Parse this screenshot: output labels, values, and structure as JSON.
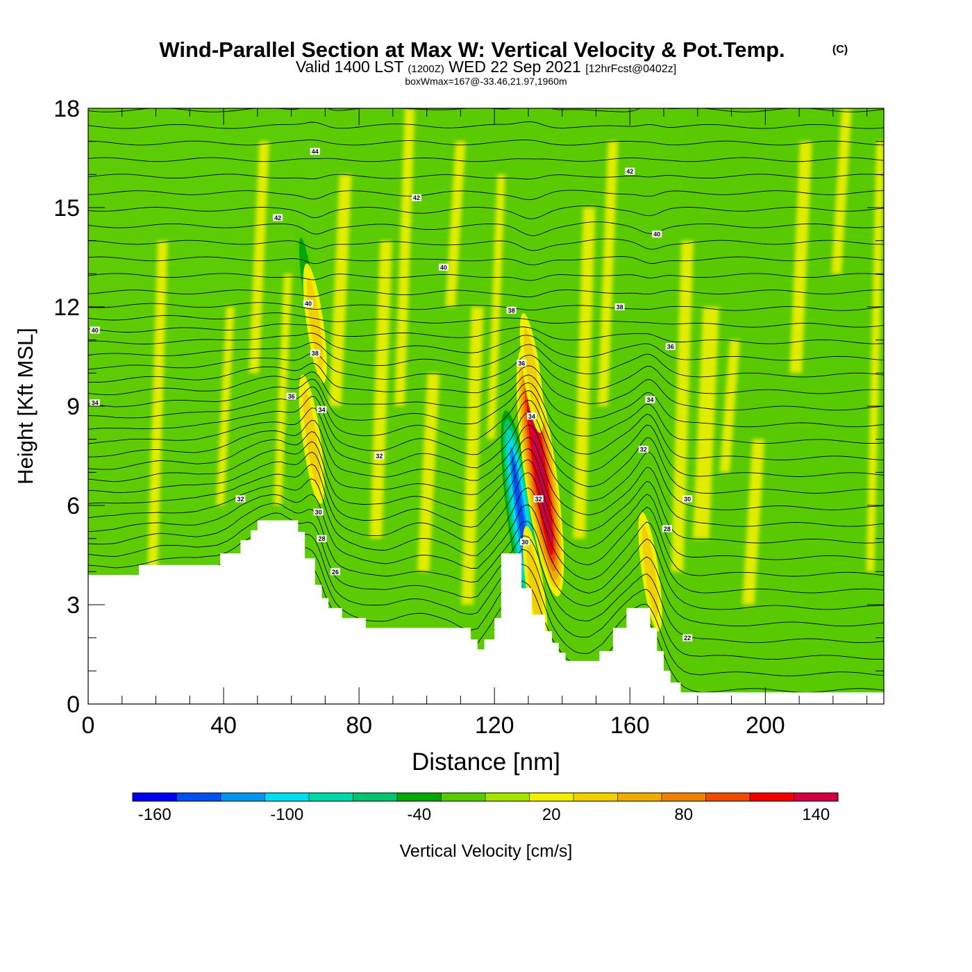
{
  "titles": {
    "main": "Wind-Parallel Section at Max W: Vertical Velocity & Pot.Temp.",
    "copyright": "(C)",
    "valid_prefix": "Valid 1400 LST",
    "valid_utc": "(1200Z)",
    "valid_date": "WED 22 Sep 2021",
    "forecast": "[12hrFcst@0402z]",
    "box_max": "boxWmax=167@-33.46,21.97,1960m"
  },
  "chart_data": {
    "type": "heatmap",
    "xlabel": "Distance [nm]",
    "ylabel": "Height [Kft MSL]",
    "xlim": [
      0,
      235
    ],
    "ylim": [
      0,
      18
    ],
    "x_ticks": [
      0,
      40,
      80,
      120,
      160,
      200
    ],
    "x_minor_step": 10,
    "y_ticks": [
      0,
      3,
      6,
      9,
      12,
      15,
      18
    ],
    "y_minor_step": 1,
    "colorbar": {
      "label": "Vertical Velocity [cm/s]",
      "min": -170,
      "step": 20,
      "tick_values": [
        -160,
        -100,
        -40,
        20,
        80,
        140
      ],
      "colors": [
        "#0000f0",
        "#0050f0",
        "#0096f0",
        "#00dcf0",
        "#00d8a8",
        "#00c46c",
        "#00a800",
        "#56cc00",
        "#a6e400",
        "#f0f000",
        "#f0d000",
        "#f0aa00",
        "#f08000",
        "#f04800",
        "#f00000",
        "#d0003c"
      ]
    },
    "terrain_kft": [
      [
        0,
        3.9
      ],
      [
        15,
        3.9
      ],
      [
        15,
        4.2
      ],
      [
        39,
        4.2
      ],
      [
        39,
        4.55
      ],
      [
        45,
        4.55
      ],
      [
        45,
        4.95
      ],
      [
        48,
        4.95
      ],
      [
        48,
        5.25
      ],
      [
        50,
        5.25
      ],
      [
        50,
        5.55
      ],
      [
        62,
        5.55
      ],
      [
        62,
        5.2
      ],
      [
        64,
        5.2
      ],
      [
        64,
        4.4
      ],
      [
        67,
        4.4
      ],
      [
        67,
        3.6
      ],
      [
        69,
        3.6
      ],
      [
        69,
        3.2
      ],
      [
        71,
        3.2
      ],
      [
        71,
        2.9
      ],
      [
        75,
        2.9
      ],
      [
        75,
        2.6
      ],
      [
        82,
        2.6
      ],
      [
        82,
        2.3
      ],
      [
        113,
        2.3
      ],
      [
        113,
        1.95
      ],
      [
        115,
        1.95
      ],
      [
        115,
        1.65
      ],
      [
        117,
        1.65
      ],
      [
        117,
        1.95
      ],
      [
        120,
        1.95
      ],
      [
        120,
        2.6
      ],
      [
        122,
        2.6
      ],
      [
        122,
        4.55
      ],
      [
        128,
        4.55
      ],
      [
        128,
        3.5
      ],
      [
        131,
        3.5
      ],
      [
        131,
        2.7
      ],
      [
        135,
        2.7
      ],
      [
        135,
        2.2
      ],
      [
        137,
        2.2
      ],
      [
        137,
        1.85
      ],
      [
        139,
        1.85
      ],
      [
        139,
        1.55
      ],
      [
        141,
        1.55
      ],
      [
        141,
        1.3
      ],
      [
        151,
        1.3
      ],
      [
        151,
        1.6
      ],
      [
        155,
        1.6
      ],
      [
        155,
        2.3
      ],
      [
        159,
        2.3
      ],
      [
        159,
        2.9
      ],
      [
        166,
        2.9
      ],
      [
        166,
        2.3
      ],
      [
        168,
        2.3
      ],
      [
        168,
        1.6
      ],
      [
        170,
        1.6
      ],
      [
        170,
        1.0
      ],
      [
        172,
        1.0
      ],
      [
        172,
        0.65
      ],
      [
        175,
        0.65
      ],
      [
        175,
        0.35
      ],
      [
        235,
        0.35
      ]
    ],
    "updrafts_vertical_velocity_cms": [
      {
        "x": 133.5,
        "y": 7.0,
        "w": 167
      },
      {
        "x": 66,
        "y": 8.0,
        "w": 40
      },
      {
        "x": 132,
        "y": 3.5,
        "w": 35
      },
      {
        "x": 166,
        "y": 4.0,
        "w": 30
      },
      {
        "x": 67,
        "y": 11.5,
        "w": 30
      },
      {
        "x": 131,
        "y": 10.0,
        "w": 30
      }
    ],
    "downdrafts_vertical_velocity_cms": [
      {
        "x": 128,
        "y": 5.5,
        "w": -160
      },
      {
        "x": 65,
        "y": 12.5,
        "w": -50
      },
      {
        "x": 130,
        "y": 11.5,
        "w": -45
      },
      {
        "x": 139,
        "y": 8.0,
        "w": -40
      },
      {
        "x": 164,
        "y": 6.5,
        "w": -40
      },
      {
        "x": 62,
        "y": 6.5,
        "w": -40
      }
    ],
    "theta_contour_labels": [
      {
        "x": 2,
        "y": 11.3,
        "text": "40"
      },
      {
        "x": 2,
        "y": 9.1,
        "text": "34"
      },
      {
        "x": 45,
        "y": 6.2,
        "text": "32"
      },
      {
        "x": 56,
        "y": 14.7,
        "text": "42"
      },
      {
        "x": 67,
        "y": 16.7,
        "text": "44"
      },
      {
        "x": 65,
        "y": 12.1,
        "text": "40"
      },
      {
        "x": 67,
        "y": 10.6,
        "text": "38"
      },
      {
        "x": 60,
        "y": 9.3,
        "text": "36"
      },
      {
        "x": 69,
        "y": 8.9,
        "text": "34"
      },
      {
        "x": 68,
        "y": 5.8,
        "text": "30"
      },
      {
        "x": 69,
        "y": 5.0,
        "text": "28"
      },
      {
        "x": 73,
        "y": 4.0,
        "text": "26"
      },
      {
        "x": 97,
        "y": 15.3,
        "text": "42"
      },
      {
        "x": 105,
        "y": 13.2,
        "text": "40"
      },
      {
        "x": 86,
        "y": 7.5,
        "text": "32"
      },
      {
        "x": 125,
        "y": 11.9,
        "text": "38"
      },
      {
        "x": 128,
        "y": 10.3,
        "text": "36"
      },
      {
        "x": 131,
        "y": 8.7,
        "text": "34"
      },
      {
        "x": 133,
        "y": 6.2,
        "text": "32"
      },
      {
        "x": 129,
        "y": 4.9,
        "text": "30"
      },
      {
        "x": 160,
        "y": 16.1,
        "text": "42"
      },
      {
        "x": 168,
        "y": 14.2,
        "text": "40"
      },
      {
        "x": 157,
        "y": 12.0,
        "text": "38"
      },
      {
        "x": 172,
        "y": 10.8,
        "text": "36"
      },
      {
        "x": 166,
        "y": 9.2,
        "text": "34"
      },
      {
        "x": 164,
        "y": 7.7,
        "text": "32"
      },
      {
        "x": 177,
        "y": 6.2,
        "text": "30"
      },
      {
        "x": 171,
        "y": 5.3,
        "text": "28"
      },
      {
        "x": 177,
        "y": 2.0,
        "text": "22"
      }
    ]
  }
}
